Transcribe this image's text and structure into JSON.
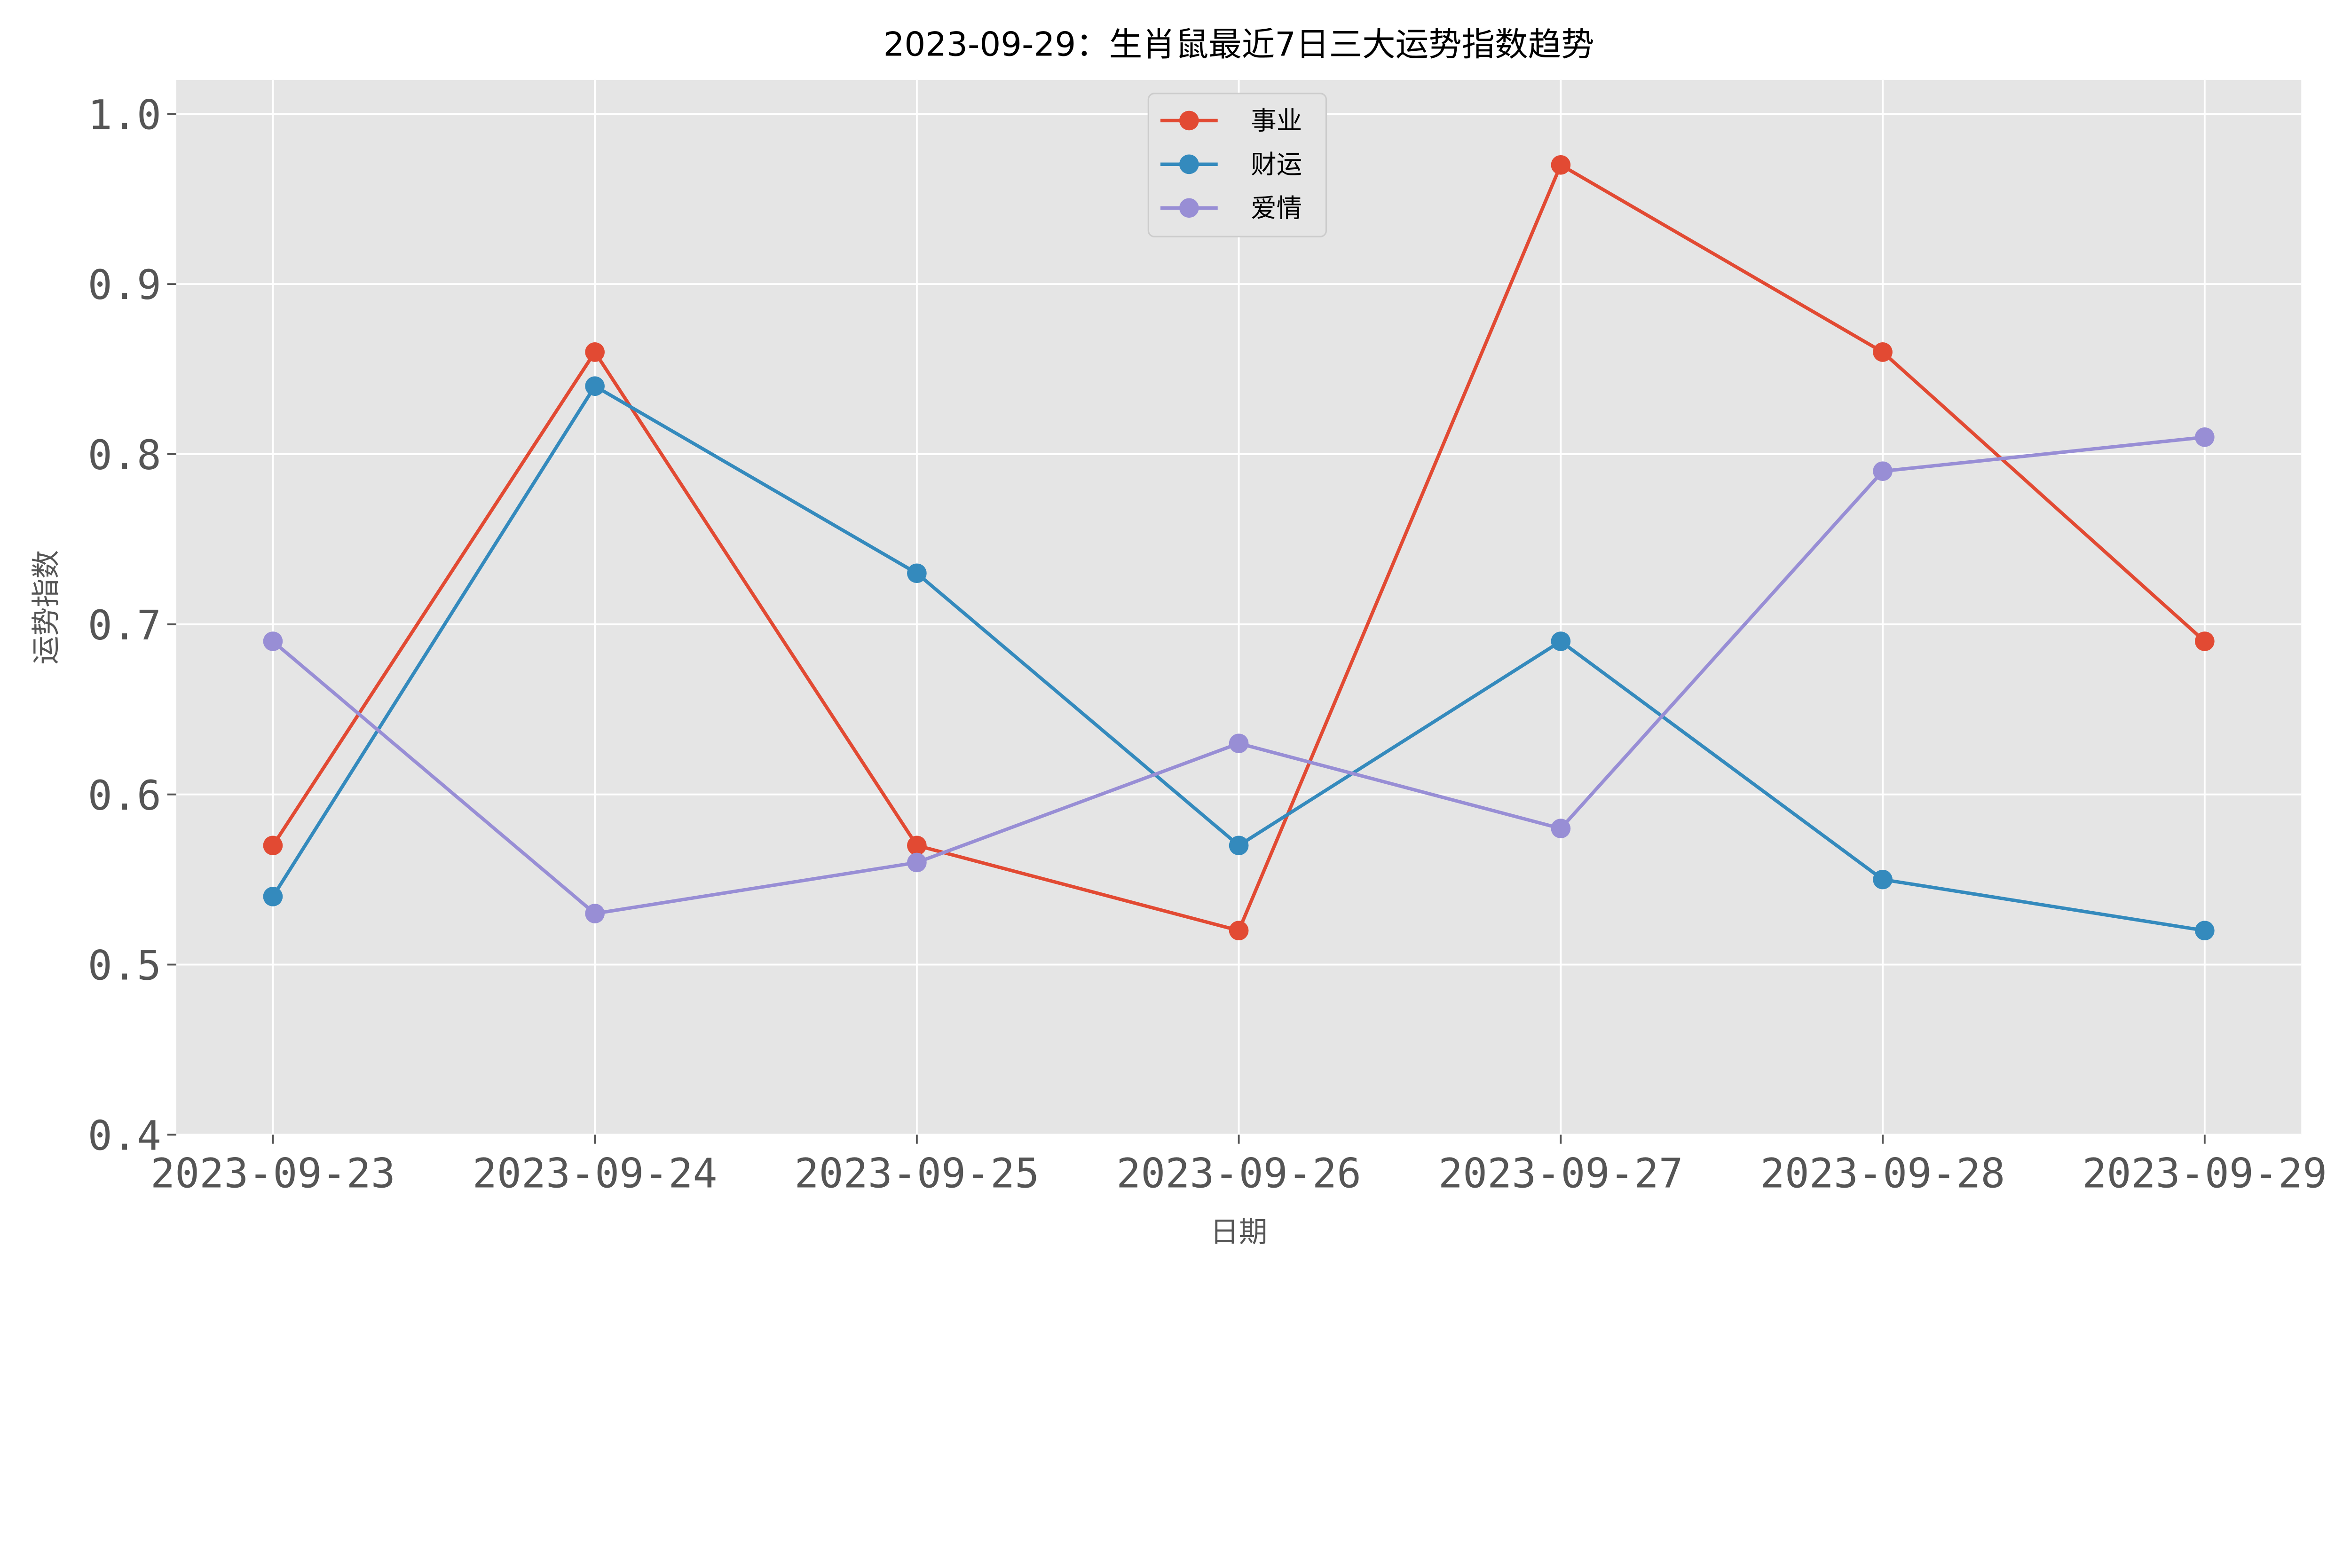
{
  "chart_data": {
    "type": "line",
    "title": "2023-09-29：生肖鼠最近7日三大运势指数趋势",
    "xlabel": "日期",
    "ylabel": "运势指数",
    "categories": [
      "2023-09-23",
      "2023-09-24",
      "2023-09-25",
      "2023-09-26",
      "2023-09-27",
      "2023-09-28",
      "2023-09-29"
    ],
    "ylim": [
      0.4,
      1.02
    ],
    "yticks": [
      "0.4",
      "0.5",
      "0.6",
      "0.7",
      "0.8",
      "0.9",
      "1.0"
    ],
    "grid": true,
    "legend_position": "top-center",
    "series": [
      {
        "name": "事业",
        "color": "#E24A33",
        "values": [
          0.57,
          0.86,
          0.57,
          0.52,
          0.97,
          0.86,
          0.69
        ]
      },
      {
        "name": "财运",
        "color": "#348ABD",
        "values": [
          0.54,
          0.84,
          0.73,
          0.57,
          0.69,
          0.55,
          0.52
        ]
      },
      {
        "name": "爱情",
        "color": "#988ED5",
        "values": [
          0.69,
          0.53,
          0.56,
          0.63,
          0.58,
          0.79,
          0.81
        ]
      }
    ],
    "background_color": "#E5E5E5"
  }
}
